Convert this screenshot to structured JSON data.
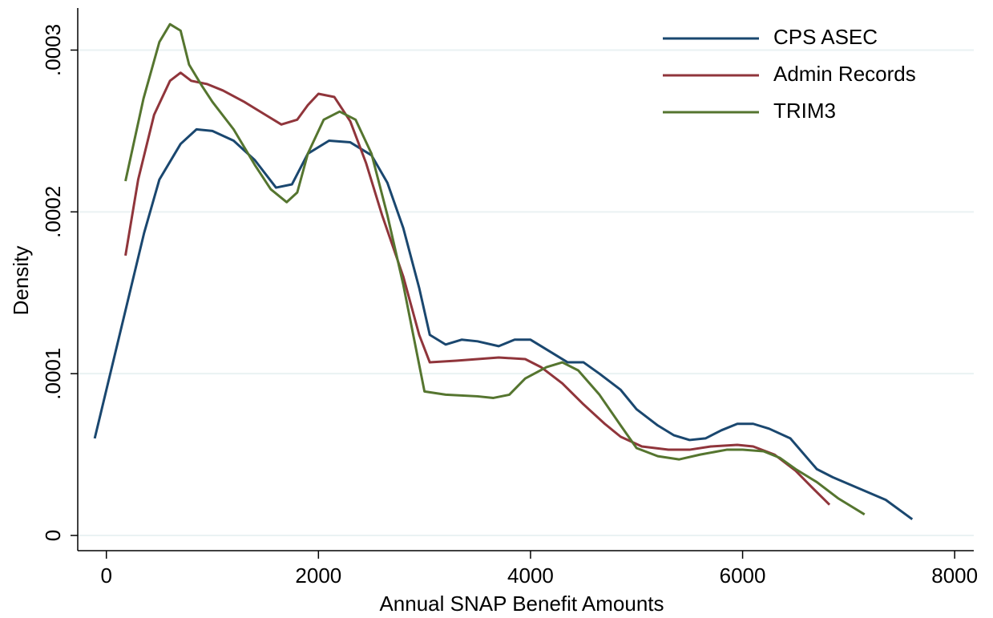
{
  "chart_data": {
    "type": "line",
    "x_label": "Annual SNAP Benefit Amounts",
    "y_label": "Density",
    "xlim": [
      -270,
      8180
    ],
    "ylim": [
      -9.4e-06,
      0.000326
    ],
    "xticks": [
      0,
      2000,
      4000,
      6000,
      8000
    ],
    "yticks": [
      0,
      {
        "value": 0.0001,
        "label": ".0001"
      },
      {
        "value": 0.0002,
        "label": ".0002"
      },
      {
        "value": 0.0003,
        "label": ".0003"
      }
    ],
    "grid": true,
    "legend": "top-right",
    "series": [
      {
        "name": "CPS ASEC",
        "color": "#1a476f",
        "x": [
          -110,
          356,
          500,
          700,
          850,
          1000,
          1200,
          1400,
          1600,
          1750,
          1900,
          2100,
          2300,
          2500,
          2650,
          2800,
          2950,
          3050,
          3200,
          3350,
          3500,
          3700,
          3850,
          4000,
          4200,
          4350,
          4500,
          4650,
          4850,
          5000,
          5200,
          5350,
          5500,
          5650,
          5800,
          5950,
          6100,
          6250,
          6450,
          6700,
          6850,
          7100,
          7350,
          7600
        ],
        "values": [
          6e-05,
          0.000187,
          0.00022,
          0.000242,
          0.000251,
          0.00025,
          0.000244,
          0.000232,
          0.000215,
          0.000217,
          0.000236,
          0.000244,
          0.000243,
          0.000235,
          0.000218,
          0.00019,
          0.000153,
          0.000124,
          0.000118,
          0.000121,
          0.00012,
          0.000117,
          0.000121,
          0.000121,
          0.000113,
          0.000107,
          0.000107,
          0.0001,
          9e-05,
          7.8e-05,
          6.8e-05,
          6.2e-05,
          5.9e-05,
          6e-05,
          6.5e-05,
          6.9e-05,
          6.9e-05,
          6.6e-05,
          6e-05,
          4.1e-05,
          3.6e-05,
          2.9e-05,
          2.2e-05,
          1e-05
        ]
      },
      {
        "name": "Admin Records",
        "color": "#90353b",
        "x": [
          180,
          300,
          450,
          600,
          700,
          800,
          950,
          1100,
          1300,
          1500,
          1650,
          1800,
          1900,
          2000,
          2150,
          2300,
          2450,
          2600,
          2800,
          2950,
          3050,
          3300,
          3500,
          3700,
          3950,
          4100,
          4300,
          4500,
          4700,
          4850,
          5050,
          5300,
          5500,
          5700,
          5950,
          6100,
          6300,
          6500,
          6650,
          6820
        ],
        "values": [
          0.000173,
          0.00022,
          0.00026,
          0.000281,
          0.000286,
          0.000281,
          0.000279,
          0.000275,
          0.000268,
          0.00026,
          0.000254,
          0.000257,
          0.000266,
          0.000273,
          0.000271,
          0.000256,
          0.00023,
          0.000198,
          0.00016,
          0.000124,
          0.000107,
          0.000108,
          0.000109,
          0.00011,
          0.000109,
          0.000104,
          9.4e-05,
          8.1e-05,
          6.9e-05,
          6.1e-05,
          5.5e-05,
          5.3e-05,
          5.3e-05,
          5.5e-05,
          5.6e-05,
          5.5e-05,
          5e-05,
          4e-05,
          3e-05,
          1.9e-05
        ]
      },
      {
        "name": "TRIM3",
        "color": "#55752f",
        "x": [
          180,
          350,
          500,
          600,
          700,
          780,
          900,
          1000,
          1200,
          1400,
          1550,
          1700,
          1800,
          1900,
          2050,
          2200,
          2350,
          2500,
          2650,
          2800,
          2900,
          3000,
          3200,
          3500,
          3650,
          3800,
          3950,
          4150,
          4300,
          4450,
          4650,
          4850,
          5000,
          5200,
          5400,
          5600,
          5850,
          6000,
          6200,
          6350,
          6500,
          6700,
          6900,
          7150
        ],
        "values": [
          0.000219,
          0.00027,
          0.000305,
          0.000316,
          0.000312,
          0.000291,
          0.000278,
          0.000268,
          0.000251,
          0.000229,
          0.000214,
          0.000206,
          0.000212,
          0.000236,
          0.000257,
          0.000262,
          0.000257,
          0.000236,
          0.000198,
          0.000155,
          0.000122,
          8.9e-05,
          8.7e-05,
          8.6e-05,
          8.5e-05,
          8.7e-05,
          9.7e-05,
          0.000104,
          0.000107,
          0.000102,
          8.7e-05,
          6.8e-05,
          5.4e-05,
          4.9e-05,
          4.7e-05,
          5e-05,
          5.3e-05,
          5.3e-05,
          5.2e-05,
          4.8e-05,
          4.1e-05,
          3.3e-05,
          2.3e-05,
          1.3e-05
        ]
      }
    ]
  }
}
